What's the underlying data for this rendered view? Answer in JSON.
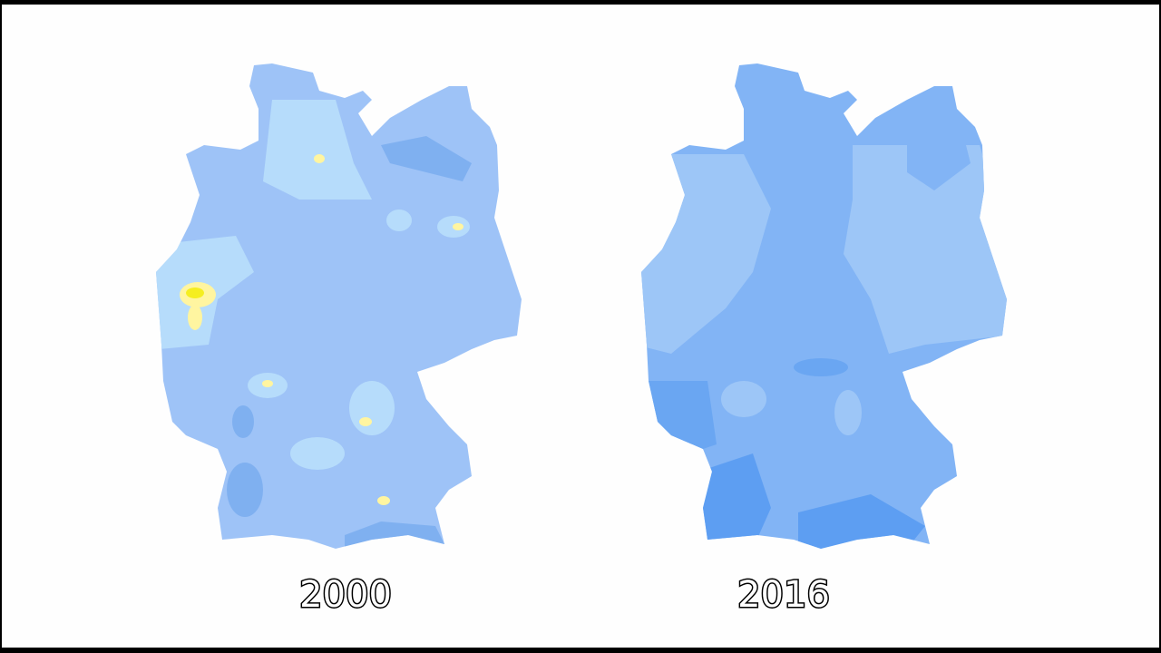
{
  "maps": [
    {
      "label": "2000"
    },
    {
      "label": "2016"
    }
  ]
}
